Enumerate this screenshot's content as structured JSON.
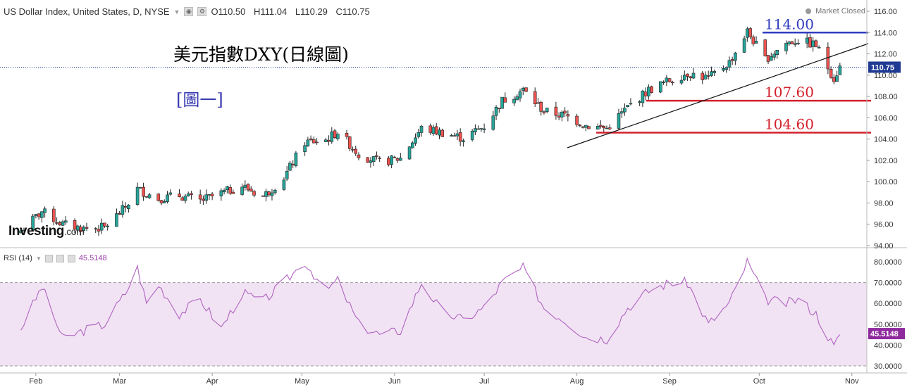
{
  "header": {
    "symbol": "US Dollar Index, United States, D, NYSE",
    "open": "O110.50",
    "high": "H111.04",
    "low": "L110.29",
    "close": "C110.75",
    "market_status": "Market Closed"
  },
  "rsi_header": {
    "label": "RSI (14)",
    "value": "45.5148"
  },
  "logo": {
    "main": "Investing",
    "suffix": ".com"
  },
  "annotations": {
    "title": "美元指數DXY(日線圖)",
    "figure": "[圖一]",
    "level_114": "114.00",
    "level_1076": "107.60",
    "level_1046": "104.60"
  },
  "colors": {
    "up": "#26a69a",
    "down": "#ef5350",
    "rsi_line": "#b064c0",
    "rsi_band": "#f1e3f4",
    "resistance": "#2f3dbf",
    "support": "#d3212d",
    "price_label_bg": "#1f3a93"
  },
  "chart_data": {
    "type": "candlestick",
    "title": "US Dollar Index, United States, D, NYSE",
    "price_axis": {
      "min": 94,
      "max": 116,
      "ticks": [
        "96.00",
        "98.00",
        "100.00",
        "102.00",
        "104.00",
        "106.00",
        "108.00",
        "110.00",
        "112.00",
        "114.00",
        "116.00"
      ],
      "partial_tick": "94.00"
    },
    "current_price": "110.75",
    "time_axis": [
      "Feb",
      "Mar",
      "Apr",
      "May",
      "Jun",
      "Jul",
      "Aug",
      "Sep",
      "Oct",
      "Nov"
    ],
    "close_path": [
      {
        "x": "2022-01-27",
        "close": 95.4
      },
      {
        "x": "2022-02-03",
        "close": 97.2
      },
      {
        "x": "2022-02-10",
        "close": 96.0
      },
      {
        "x": "2022-02-17",
        "close": 95.6
      },
      {
        "x": "2022-02-24",
        "close": 95.7
      },
      {
        "x": "2022-03-03",
        "close": 97.6
      },
      {
        "x": "2022-03-07",
        "close": 99.3
      },
      {
        "x": "2022-03-14",
        "close": 98.4
      },
      {
        "x": "2022-03-21",
        "close": 98.7
      },
      {
        "x": "2022-03-28",
        "close": 98.2
      },
      {
        "x": "2022-04-04",
        "close": 98.9
      },
      {
        "x": "2022-04-11",
        "close": 99.6
      },
      {
        "x": "2022-04-18",
        "close": 98.6
      },
      {
        "x": "2022-04-25",
        "close": 100.4
      },
      {
        "x": "2022-05-02",
        "close": 103.7
      },
      {
        "x": "2022-05-09",
        "close": 103.9
      },
      {
        "x": "2022-05-13",
        "close": 104.7
      },
      {
        "x": "2022-05-20",
        "close": 102.6
      },
      {
        "x": "2022-05-27",
        "close": 101.8
      },
      {
        "x": "2022-06-03",
        "close": 102.2
      },
      {
        "x": "2022-06-10",
        "close": 105.0
      },
      {
        "x": "2022-06-17",
        "close": 104.6
      },
      {
        "x": "2022-06-24",
        "close": 104.1
      },
      {
        "x": "2022-07-01",
        "close": 105.2
      },
      {
        "x": "2022-07-07",
        "close": 107.6
      },
      {
        "x": "2022-07-14",
        "close": 108.6
      },
      {
        "x": "2022-07-21",
        "close": 106.6
      },
      {
        "x": "2022-07-28",
        "close": 106.2
      },
      {
        "x": "2022-08-04",
        "close": 105.3
      },
      {
        "x": "2022-08-11",
        "close": 105.0
      },
      {
        "x": "2022-08-18",
        "close": 107.0
      },
      {
        "x": "2022-08-25",
        "close": 108.6
      },
      {
        "x": "2022-09-01",
        "close": 109.5
      },
      {
        "x": "2022-09-07",
        "close": 110.2
      },
      {
        "x": "2022-09-14",
        "close": 109.7
      },
      {
        "x": "2022-09-21",
        "close": 111.2
      },
      {
        "x": "2022-09-27",
        "close": 114.1
      },
      {
        "x": "2022-10-03",
        "close": 111.5
      },
      {
        "x": "2022-10-10",
        "close": 113.0
      },
      {
        "x": "2022-10-14",
        "close": 113.3
      },
      {
        "x": "2022-10-20",
        "close": 112.8
      },
      {
        "x": "2022-10-26",
        "close": 109.7
      },
      {
        "x": "2022-10-28",
        "close": 110.75
      }
    ],
    "horizontal_levels": [
      {
        "label": "114.00",
        "value": 114.0
      },
      {
        "label": "107.60",
        "value": 107.6
      },
      {
        "label": "104.60",
        "value": 104.6
      }
    ],
    "trendline": [
      {
        "x": "2022-08-01",
        "value": 103.2
      },
      {
        "x": "2022-11-01",
        "value": 112.9
      }
    ],
    "rsi": {
      "name": "RSI (14)",
      "range": [
        25,
        85
      ],
      "ticks": [
        "30.0000",
        "40.0000",
        "50.0000",
        "60.0000",
        "70.0000",
        "80.0000"
      ],
      "overbought": 70,
      "oversold": 30,
      "last": 45.5148,
      "path": [
        {
          "x": "2022-01-27",
          "v": 48
        },
        {
          "x": "2022-02-03",
          "v": 68
        },
        {
          "x": "2022-02-10",
          "v": 43
        },
        {
          "x": "2022-02-17",
          "v": 47
        },
        {
          "x": "2022-02-24",
          "v": 50
        },
        {
          "x": "2022-03-03",
          "v": 65
        },
        {
          "x": "2022-03-07",
          "v": 77
        },
        {
          "x": "2022-03-10",
          "v": 60
        },
        {
          "x": "2022-03-14",
          "v": 69
        },
        {
          "x": "2022-03-21",
          "v": 55
        },
        {
          "x": "2022-03-28",
          "v": 62
        },
        {
          "x": "2022-04-04",
          "v": 48
        },
        {
          "x": "2022-04-11",
          "v": 65
        },
        {
          "x": "2022-04-18",
          "v": 61
        },
        {
          "x": "2022-04-25",
          "v": 70
        },
        {
          "x": "2022-05-02",
          "v": 80
        },
        {
          "x": "2022-05-09",
          "v": 66
        },
        {
          "x": "2022-05-13",
          "v": 71
        },
        {
          "x": "2022-05-20",
          "v": 50
        },
        {
          "x": "2022-05-27",
          "v": 45
        },
        {
          "x": "2022-06-03",
          "v": 47
        },
        {
          "x": "2022-06-10",
          "v": 70
        },
        {
          "x": "2022-06-17",
          "v": 56
        },
        {
          "x": "2022-06-24",
          "v": 52
        },
        {
          "x": "2022-07-01",
          "v": 58
        },
        {
          "x": "2022-07-07",
          "v": 70
        },
        {
          "x": "2022-07-14",
          "v": 77
        },
        {
          "x": "2022-07-21",
          "v": 58
        },
        {
          "x": "2022-07-28",
          "v": 52
        },
        {
          "x": "2022-08-04",
          "v": 44
        },
        {
          "x": "2022-08-11",
          "v": 43
        },
        {
          "x": "2022-08-18",
          "v": 58
        },
        {
          "x": "2022-08-25",
          "v": 66
        },
        {
          "x": "2022-09-01",
          "v": 70
        },
        {
          "x": "2022-09-07",
          "v": 70
        },
        {
          "x": "2022-09-14",
          "v": 50
        },
        {
          "x": "2022-09-21",
          "v": 60
        },
        {
          "x": "2022-09-27",
          "v": 80
        },
        {
          "x": "2022-10-03",
          "v": 62
        },
        {
          "x": "2022-10-10",
          "v": 60
        },
        {
          "x": "2022-10-14",
          "v": 62
        },
        {
          "x": "2022-10-20",
          "v": 55
        },
        {
          "x": "2022-10-26",
          "v": 39
        },
        {
          "x": "2022-10-28",
          "v": 45.5
        }
      ]
    }
  }
}
